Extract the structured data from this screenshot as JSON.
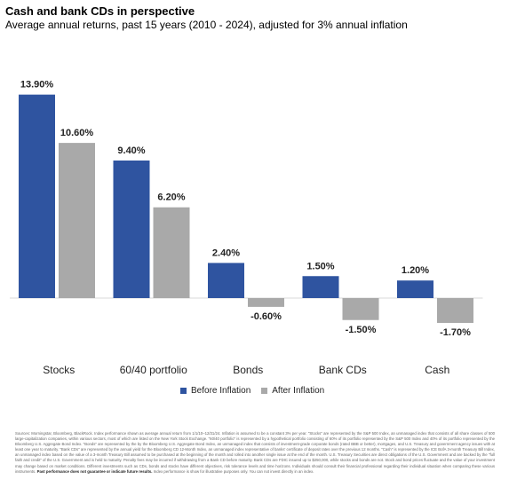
{
  "title": "Cash and bank CDs in perspective",
  "subtitle": "Average annual returns, past 15 years (2010 - 2024), adjusted for 3% annual inflation",
  "colors": {
    "before": "#2f54a0",
    "after": "#a9a9a9",
    "axis": "#d9d9d9"
  },
  "chart_data": {
    "type": "bar",
    "categories": [
      "Stocks",
      "60/40 portfolio",
      "Bonds",
      "Bank CDs",
      "Cash"
    ],
    "series": [
      {
        "name": "Before Inflation",
        "values": [
          13.9,
          9.4,
          2.4,
          1.5,
          1.2
        ],
        "labels": [
          "13.90%",
          "9.40%",
          "2.40%",
          "1.50%",
          "1.20%"
        ]
      },
      {
        "name": "After Inflation",
        "values": [
          10.6,
          6.2,
          -0.6,
          -1.5,
          -1.7
        ],
        "labels": [
          "10.60%",
          "6.20%",
          "-0.60%",
          "-1.50%",
          "-1.70%"
        ]
      }
    ],
    "title": "Cash and bank CDs in perspective",
    "subtitle": "Average annual returns, past 15 years (2010 - 2024), adjusted for 3% annual inflation",
    "xlabel": "",
    "ylabel": "",
    "grid": false,
    "legend": "bottom-center"
  },
  "legend": {
    "before": "Before Inflation",
    "after": "After Inflation"
  },
  "footnote": {
    "body": "Sources: Morningstar, Bloomberg, BlackRock. Index performance shown as average annual return from 1/1/10–12/31/24. Inflation is assumed to be a constant 3% per year. \"Stocks\" are represented by the S&P 500 Index, an unmanaged index that consists of all share classes of 500 large-capitalization companies, within various sectors, most of which are listed on the New York Stock Exchange. \"60/40 portfolio\" is represented by a hypothetical portfolio consisting of 60% of its portfolio represented by the S&P 500 Index and 40% of its portfolio represented by the Bloomberg U.S. Aggregate Bond Index. \"Bonds\" are represented by the by the Bloomberg U.S. Aggregate Bond Index, an unmanaged index that consists of investment-grade corporate bonds (rated BBB or better), mortgages, and U.S. Treasury and government agency issues with at least one year to maturity. \"Bank CDs\" are represented by the annual yield for the Bloomberg CD 12-Month Index, an unmanaged index representative of banks' certificate of deposit rates over the previous 12 months. \"Cash\" is represented by the ICE BofA 3-month Treasury Bill Index, an unmanaged index based on the value of a 3-month Treasury Bill assumed to be purchased at the beginning of the month and rolled into another single issue at the end of the month. U.S. Treasury Securities are direct obligations of the U.S. Government and are backed by the \"full faith and credit\" of the U.S. Government and is held to maturity. Penalty fees may be incurred if withdrawing from a Bank CD before maturity. Bank CDs are FDIC insured up to $250,000, while stocks and bonds are not. Stock and bond prices fluctuate and the value of your investment may change based on market conditions. Different investments such as CDs, bonds and stocks have different objectives, risk tolerance levels and time horizons. Individuals should consult their financial professional regarding their individual situation when comparing these various instruments.",
    "bold": "Past performance does not guarantee or indicate future results.",
    "tail": "Index performance is show for illustrative purposes only. You can not invest directly in an index."
  }
}
